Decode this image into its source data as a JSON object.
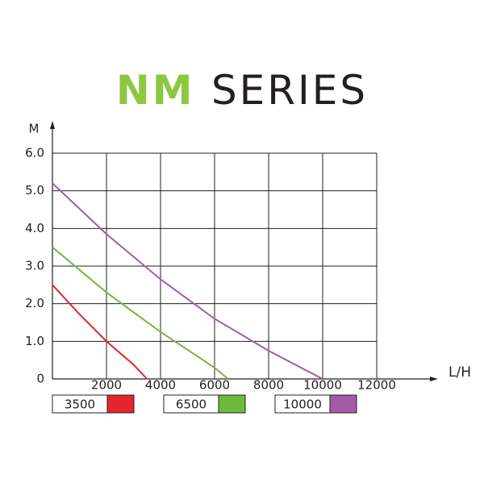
{
  "chart_data": {
    "type": "line",
    "title": [
      "NM",
      "SERIES"
    ],
    "title_colors": [
      "#8dc63f",
      "#231f20"
    ],
    "xlabel": "L/H",
    "ylabel": "M",
    "xlim": [
      0,
      12000
    ],
    "ylim": [
      0,
      6
    ],
    "xticks": [
      2000,
      4000,
      6000,
      8000,
      10000,
      12000
    ],
    "yticks": [
      0,
      {
        "value": 1,
        "label": "1.0"
      },
      {
        "value": 2,
        "label": "2.0"
      },
      {
        "value": 3,
        "label": "3.0"
      },
      {
        "value": 4,
        "label": "4.0"
      },
      {
        "value": 5,
        "label": "5.0"
      },
      {
        "value": 6,
        "label": "6.0"
      }
    ],
    "grid": true,
    "legend": "bottom",
    "series": [
      {
        "name": "3500",
        "color": "#e3262b",
        "x": [
          0,
          1000,
          2000,
          3000,
          3500
        ],
        "values": [
          2.5,
          1.72,
          1.0,
          0.38,
          0
        ]
      },
      {
        "name": "6500",
        "color": "#6cbb3c",
        "x": [
          0,
          2000,
          4000,
          6000,
          6500
        ],
        "values": [
          3.5,
          2.3,
          1.25,
          0.3,
          0
        ]
      },
      {
        "name": "10000",
        "color": "#a55aa8",
        "x": [
          0,
          2000,
          4000,
          6000,
          8000,
          10000
        ],
        "values": [
          5.2,
          3.85,
          2.65,
          1.6,
          0.75,
          0
        ]
      }
    ]
  }
}
